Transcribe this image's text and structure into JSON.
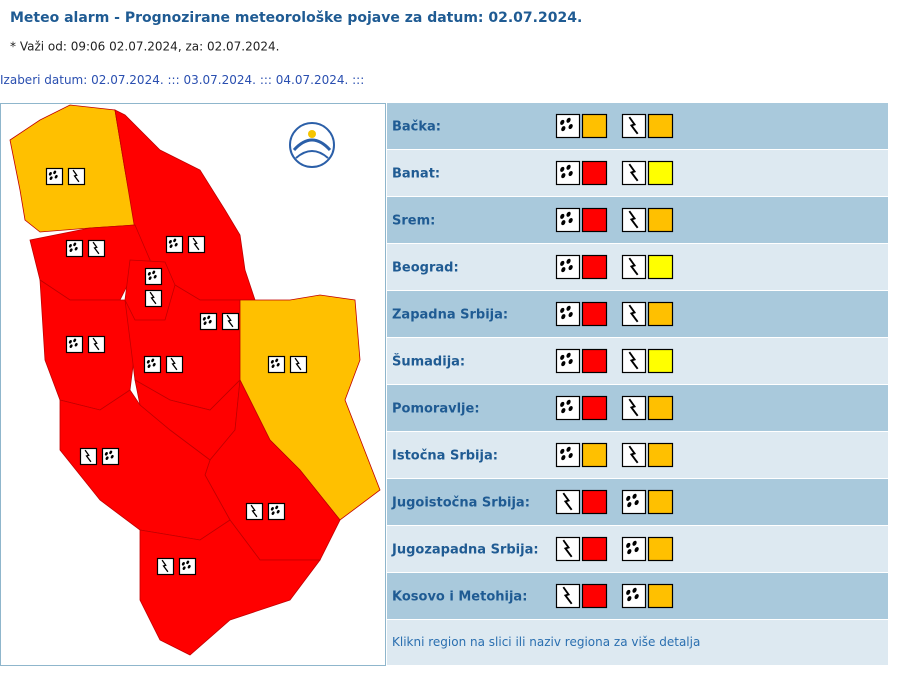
{
  "header": {
    "title": "Meteo alarm - Prognozirane meteorološke pojave za datum: 02.07.2024.",
    "subtitle": "* Važi od: 09:06 02.07.2024, za: 02.07.2024."
  },
  "date_selector": {
    "label": "Izaberi datum:",
    "dates": [
      "02.07.2024.",
      "03.07.2024.",
      "04.07.2024."
    ],
    "separator": ":::"
  },
  "regions": [
    {
      "name": "Bačka:",
      "warnings": [
        {
          "icon": "rain",
          "color": "#ffc000"
        },
        {
          "icon": "thunder",
          "color": "#ffc000"
        }
      ]
    },
    {
      "name": "Banat:",
      "warnings": [
        {
          "icon": "rain",
          "color": "#ff0000"
        },
        {
          "icon": "thunder",
          "color": "#ffff00"
        }
      ]
    },
    {
      "name": "Srem:",
      "warnings": [
        {
          "icon": "rain",
          "color": "#ff0000"
        },
        {
          "icon": "thunder",
          "color": "#ffc000"
        }
      ]
    },
    {
      "name": "Beograd:",
      "warnings": [
        {
          "icon": "rain",
          "color": "#ff0000"
        },
        {
          "icon": "thunder",
          "color": "#ffff00"
        }
      ]
    },
    {
      "name": "Zapadna Srbija:",
      "warnings": [
        {
          "icon": "rain",
          "color": "#ff0000"
        },
        {
          "icon": "thunder",
          "color": "#ffc000"
        }
      ]
    },
    {
      "name": "Šumadija:",
      "warnings": [
        {
          "icon": "rain",
          "color": "#ff0000"
        },
        {
          "icon": "thunder",
          "color": "#ffff00"
        }
      ]
    },
    {
      "name": "Pomoravlje:",
      "warnings": [
        {
          "icon": "rain",
          "color": "#ff0000"
        },
        {
          "icon": "thunder",
          "color": "#ffc000"
        }
      ]
    },
    {
      "name": "Istočna Srbija:",
      "warnings": [
        {
          "icon": "rain",
          "color": "#ffc000"
        },
        {
          "icon": "thunder",
          "color": "#ffc000"
        }
      ]
    },
    {
      "name": "Jugoistočna Srbija:",
      "warnings": [
        {
          "icon": "thunder",
          "color": "#ff0000"
        },
        {
          "icon": "rain",
          "color": "#ffc000"
        }
      ]
    },
    {
      "name": "Jugozapadna Srbija:",
      "warnings": [
        {
          "icon": "thunder",
          "color": "#ff0000"
        },
        {
          "icon": "rain",
          "color": "#ffc000"
        }
      ]
    },
    {
      "name": "Kosovo i Metohija:",
      "warnings": [
        {
          "icon": "thunder",
          "color": "#ff0000"
        },
        {
          "icon": "rain",
          "color": "#ffc000"
        }
      ]
    }
  ],
  "footer_note": "Klikni region na slici ili naziv regiona za više detalja"
}
